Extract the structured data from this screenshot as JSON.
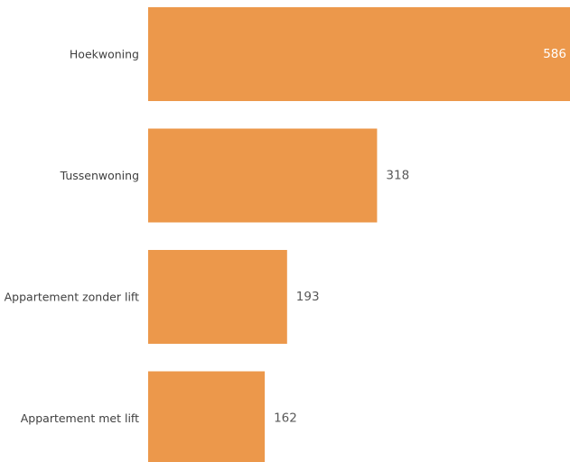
{
  "chart_data": {
    "type": "bar",
    "orientation": "horizontal",
    "categories": [
      "Hoekwoning",
      "Tussenwoning",
      "Appartement zonder lift",
      "Appartement met lift"
    ],
    "values": [
      586,
      318,
      193,
      162
    ],
    "title": "",
    "xlabel": "",
    "ylabel": "",
    "xlim": [
      0,
      586
    ],
    "grid": false,
    "legend": "none",
    "bar_color": "#EC984B",
    "value_label_color_inside": "#ffffff",
    "value_label_color_outside": "#595959"
  }
}
